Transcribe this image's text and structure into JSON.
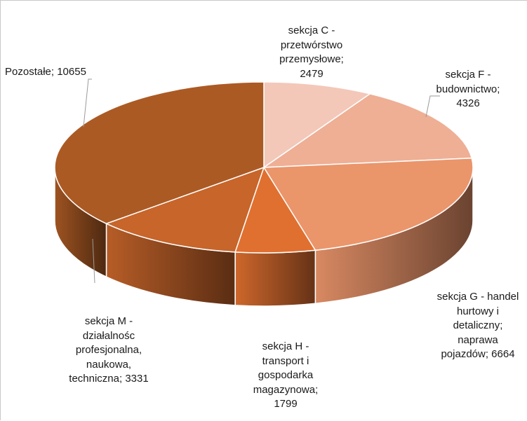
{
  "chart_data": {
    "type": "pie",
    "title": "",
    "style": "3d",
    "categories": [
      "sekcja C - przetwórstwo przemysłowe",
      "sekcja F - budownictwo",
      "sekcja G - handel hurtowy i detaliczny; naprawa pojazdów",
      "sekcja H - transport i gospodarka magazynowa",
      "sekcja M - działalnośc profesjonalna, naukowa, techniczna",
      "Pozostałe"
    ],
    "values": [
      2479,
      4326,
      6664,
      1799,
      3331,
      10655
    ],
    "labels": [
      "sekcja C -\nprzetwórstwo\nprzemysłowe;\n2479",
      "sekcja F -\nbudownictwo;\n4326",
      "sekcja G - handel\nhurtowy i\ndetaliczny;\nnaprawa\npojazdów; 6664",
      "sekcja H -\ntransport i\ngospodarka\nmagazynowa;\n1799",
      "sekcja M -\ndziałalnośc\nprofesjonalna,\nnaukowa,\ntechniczna; 3331",
      "Pozostałe; 10655"
    ],
    "colors": [
      "#f3c8b9",
      "#eeaf95",
      "#eb956b",
      "#e07030",
      "#c7652a",
      "#ac5a24"
    ]
  }
}
